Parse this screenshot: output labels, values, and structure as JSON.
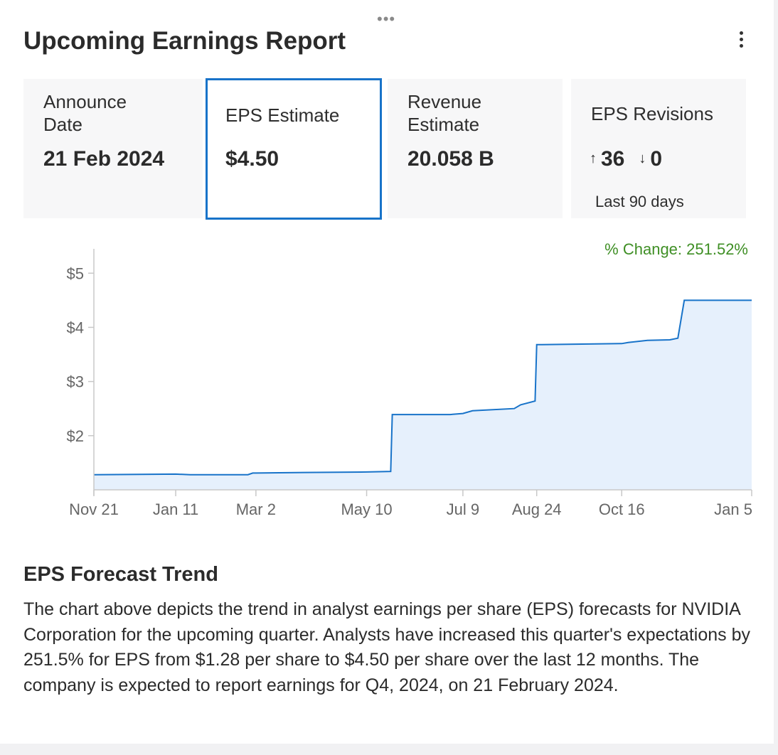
{
  "header": {
    "title": "Upcoming Earnings Report",
    "drag_handle": "•••"
  },
  "tiles": {
    "announce": {
      "label_line1": "Announce",
      "label_line2": "Date",
      "value": "21 Feb 2024"
    },
    "eps_estimate": {
      "label": "EPS Estimate",
      "value": "$4.50"
    },
    "revenue": {
      "label_line1": "Revenue",
      "label_line2": "Estimate",
      "value": "20.058 B"
    },
    "revisions": {
      "label": "EPS Revisions",
      "up_arrow": "↑",
      "up": "36",
      "down_arrow": "↓",
      "down": "0",
      "period": "Last 90 days"
    }
  },
  "chart_data": {
    "type": "area",
    "annotation": "% Change: 251.52%",
    "x_ticks": [
      "Nov 21",
      "Jan 11",
      "Mar 2",
      "May 10",
      "Jul 9",
      "Aug 24",
      "Oct 16",
      "Jan 5"
    ],
    "y_ticks": [
      "$2",
      "$3",
      "$4",
      "$5"
    ],
    "ylim": [
      1.0,
      5.45
    ],
    "x_range": [
      "2022-11-21",
      "2024-01-05"
    ],
    "series": [
      {
        "x": [
          "2022-11-21",
          "2023-01-11",
          "2023-01-20",
          "2023-02-25",
          "2023-02-28",
          "2023-03-02",
          "2023-04-01",
          "2023-05-10",
          "2023-05-25",
          "2023-05-26",
          "2023-07-01",
          "2023-07-09",
          "2023-07-15",
          "2023-08-10",
          "2023-08-14",
          "2023-08-23",
          "2023-08-24",
          "2023-10-16",
          "2023-10-20",
          "2023-11-01",
          "2023-11-15",
          "2023-11-20",
          "2023-11-24",
          "2024-01-05"
        ],
        "y": [
          1.28,
          1.29,
          1.28,
          1.28,
          1.31,
          1.31,
          1.32,
          1.33,
          1.34,
          2.39,
          2.39,
          2.41,
          2.46,
          2.5,
          2.57,
          2.64,
          3.68,
          3.7,
          3.72,
          3.76,
          3.77,
          3.8,
          4.5,
          4.5
        ]
      }
    ],
    "colors": {
      "line": "#1873c9",
      "fill": "#e6f0fc"
    }
  },
  "section": {
    "title": "EPS Forecast Trend",
    "description": "The chart above depicts the trend in analyst earnings per share (EPS) forecasts for NVIDIA Corporation for the upcoming quarter. Analysts have increased this quarter's expectations by 251.5% for EPS from $1.28 per share to $4.50 per share over the last 12 months. The company is expected to report earnings for Q4, 2024, on 21 February 2024."
  }
}
